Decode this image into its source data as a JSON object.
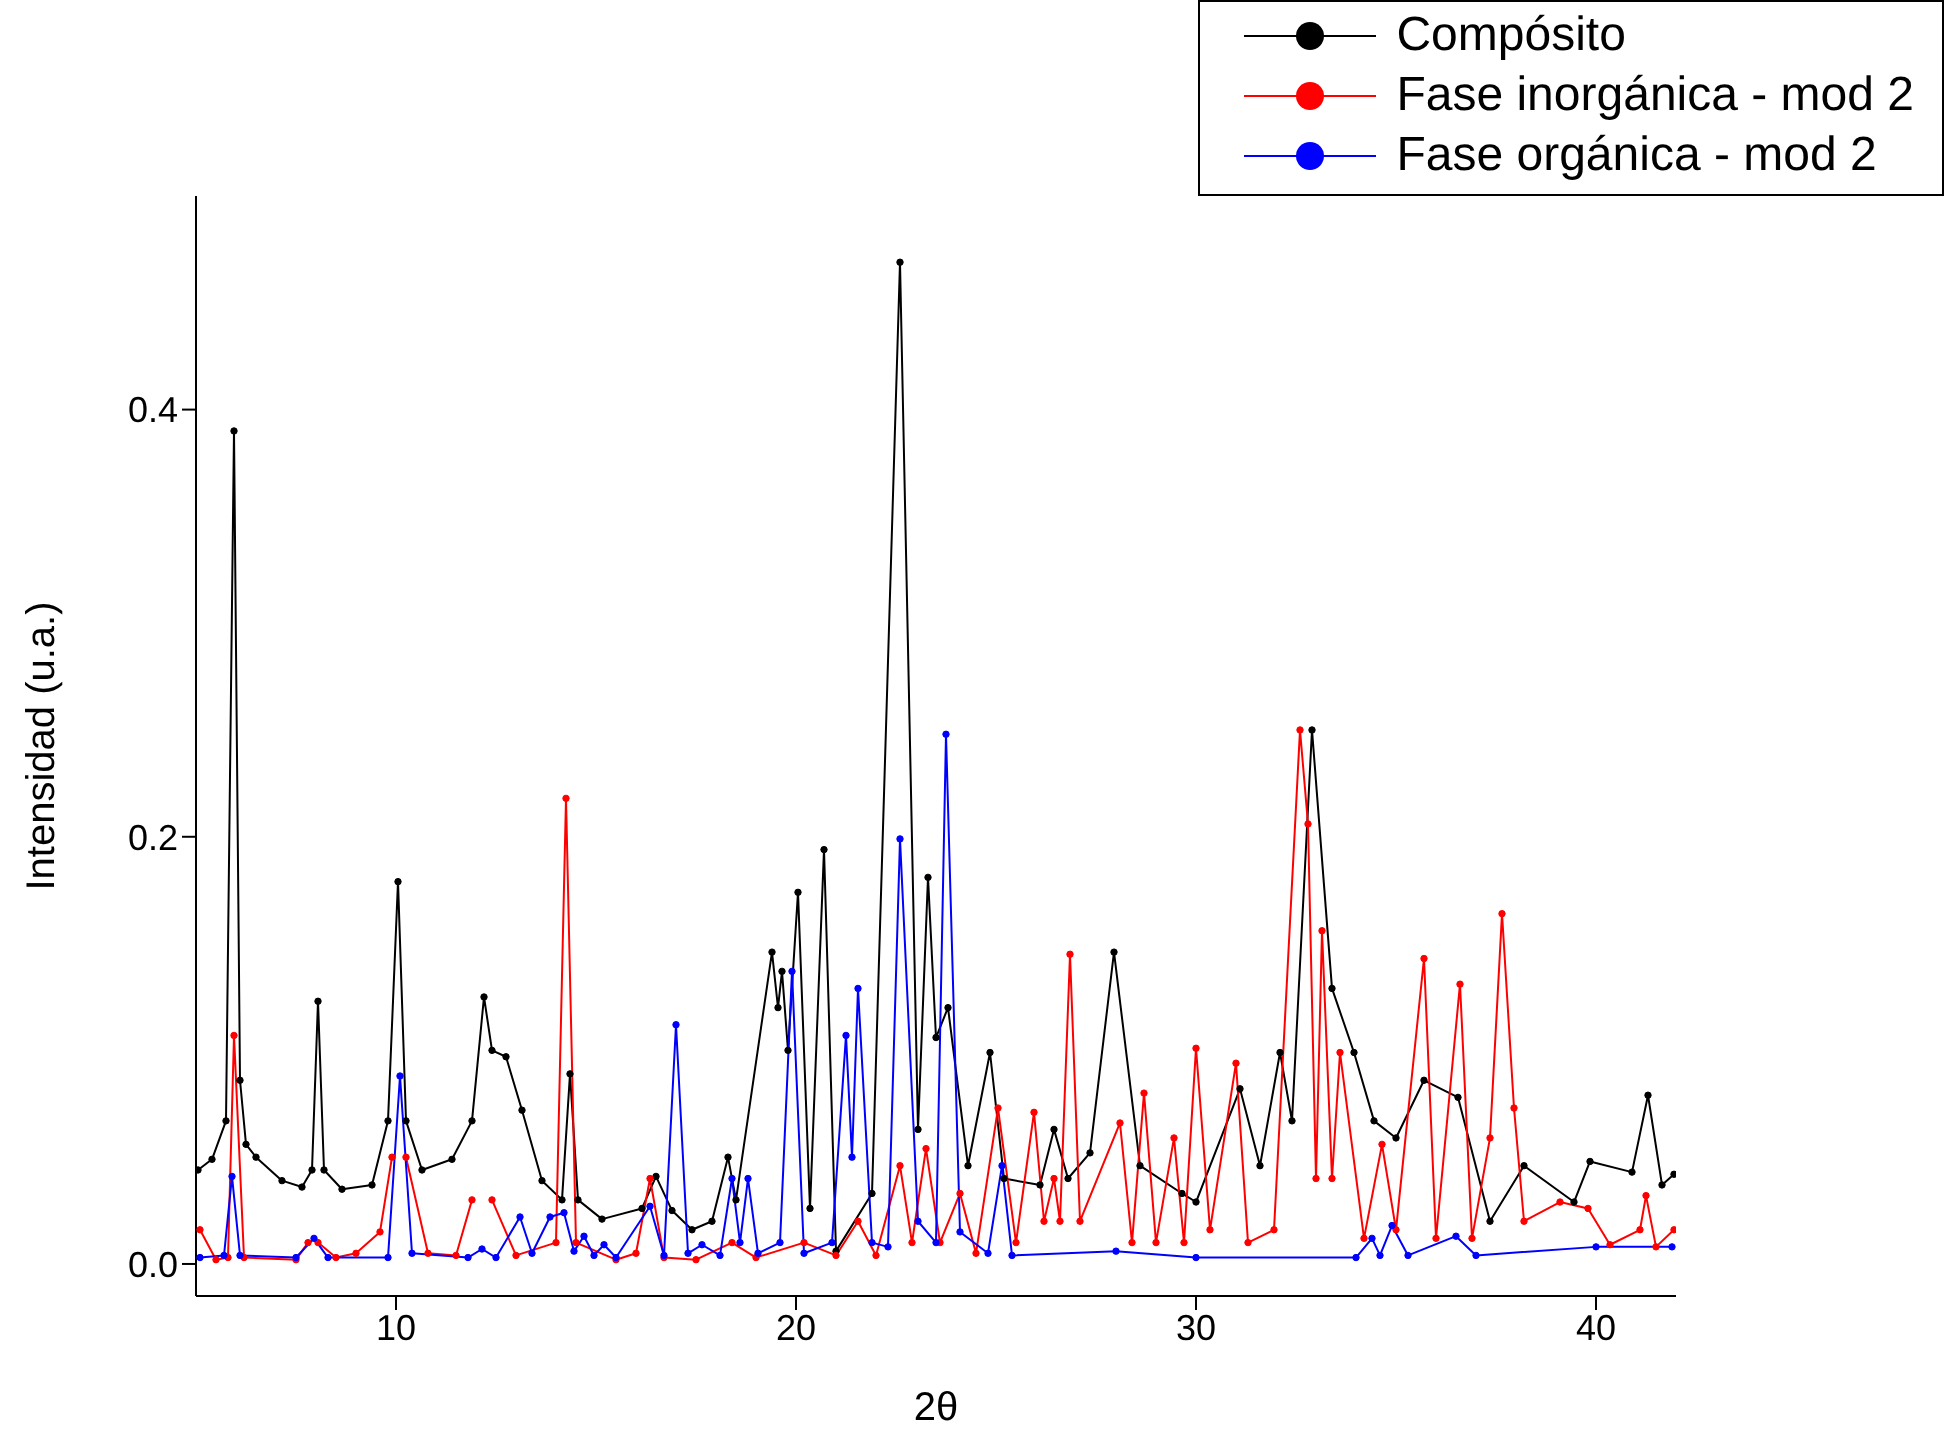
{
  "chart_data": {
    "type": "line",
    "xlabel": "2θ",
    "ylabel": "Intensidad (u.a.)",
    "xlim": [
      5,
      42
    ],
    "ylim": [
      -0.015,
      0.5
    ],
    "xticks": [
      10,
      20,
      30,
      40
    ],
    "yticks": [
      {
        "value": 0,
        "label": "0.0"
      },
      0.2,
      0.4
    ],
    "marker": "circle",
    "legend": "top right",
    "series": [
      {
        "name": "Compósito",
        "color": "#000000",
        "x": [
          5.05,
          5.4,
          5.75,
          5.95,
          6.1,
          6.25,
          6.5,
          7.15,
          7.65,
          7.9,
          8.05,
          8.2,
          8.65,
          9.4,
          9.8,
          10.05,
          10.25,
          10.65,
          11.4,
          11.9,
          12.2,
          12.4,
          12.75,
          13.15,
          13.65,
          14.15,
          14.35,
          14.55,
          15.15,
          16.15,
          16.5,
          16.9,
          17.4,
          17.9,
          18.3,
          18.5,
          19.4,
          19.55,
          19.65,
          19.8,
          20.05,
          20.35,
          20.7,
          21.0,
          21.9,
          22.6,
          23.05,
          23.3,
          23.5,
          23.8,
          24.3,
          24.85,
          25.2,
          26.1,
          26.45,
          26.8,
          27.35,
          27.95,
          28.6,
          29.65,
          30.0,
          31.1,
          31.6,
          32.1,
          32.4,
          32.9,
          33.4,
          33.95,
          34.45,
          35.0,
          35.7,
          36.55,
          37.35,
          38.2,
          39.45,
          39.85,
          40.9,
          41.3,
          41.65,
          41.95
        ],
        "values": [
          0.044,
          0.049,
          0.067,
          0.39,
          0.086,
          0.056,
          0.05,
          0.039,
          0.036,
          0.044,
          0.123,
          0.044,
          0.035,
          0.037,
          0.067,
          0.179,
          0.067,
          0.044,
          0.049,
          0.067,
          0.125,
          0.1,
          0.097,
          0.072,
          0.039,
          0.03,
          0.089,
          0.03,
          0.021,
          0.026,
          0.041,
          0.025,
          0.016,
          0.02,
          0.05,
          0.03,
          0.146,
          0.12,
          0.137,
          0.1,
          0.174,
          0.026,
          0.194,
          0.006,
          0.033,
          0.469,
          0.063,
          0.181,
          0.106,
          0.12,
          0.046,
          0.099,
          0.04,
          0.037,
          0.063,
          0.04,
          0.052,
          0.146,
          0.046,
          0.033,
          0.029,
          0.082,
          0.046,
          0.099,
          0.067,
          0.25,
          0.129,
          0.099,
          0.067,
          0.059,
          0.086,
          0.078,
          0.02,
          0.046,
          0.029,
          0.048,
          0.043,
          0.079,
          0.037,
          0.042
        ]
      },
      {
        "name": "Fase inorgánica - mod 2",
        "color": "#ff0000",
        "x": [
          5.1,
          5.5,
          5.8,
          5.95,
          6.2,
          7.5,
          7.8,
          7.9,
          8.05,
          8.5,
          9.0,
          9.6,
          9.9,
          10.05,
          10.25,
          10.8,
          11.5,
          11.9,
          12.15,
          12.4,
          13.0,
          14.0,
          14.25,
          14.5,
          15.5,
          16.0,
          16.35,
          16.7,
          17.5,
          18.4,
          19.0,
          20.2,
          21.0,
          21.55,
          22.0,
          22.6,
          22.9,
          23.25,
          23.6,
          24.1,
          24.5,
          25.05,
          25.5,
          25.95,
          26.2,
          26.45,
          26.6,
          26.85,
          27.1,
          28.1,
          28.4,
          28.7,
          29.0,
          29.45,
          29.7,
          30.0,
          30.35,
          31.0,
          31.3,
          31.95,
          32.6,
          32.8,
          33.0,
          33.15,
          33.4,
          33.6,
          34.2,
          34.65,
          35.0,
          35.7,
          36.0,
          36.6,
          36.9,
          37.35,
          37.65,
          37.95,
          38.2,
          39.1,
          39.8,
          40.35,
          41.1,
          41.25,
          41.5,
          41.95
        ],
        "values": [
          0.016,
          0.002,
          0.003,
          0.107,
          0.003,
          0.002,
          0.01,
          null,
          0.01,
          0.003,
          0.005,
          0.015,
          0.05,
          null,
          0.05,
          0.005,
          0.004,
          0.03,
          null,
          0.03,
          0.004,
          0.01,
          0.218,
          0.01,
          0.002,
          0.005,
          0.04,
          0.003,
          0.002,
          0.01,
          0.003,
          0.01,
          0.004,
          0.02,
          0.004,
          0.046,
          0.01,
          0.054,
          0.01,
          0.033,
          0.005,
          0.073,
          0.01,
          0.071,
          0.02,
          0.04,
          0.02,
          0.145,
          0.02,
          0.066,
          0.01,
          0.08,
          0.01,
          0.059,
          0.01,
          0.101,
          0.016,
          0.094,
          0.01,
          0.016,
          0.25,
          0.206,
          0.04,
          0.156,
          0.04,
          0.099,
          0.012,
          0.056,
          0.016,
          0.143,
          0.012,
          0.131,
          0.012,
          0.059,
          0.164,
          0.073,
          0.02,
          0.029,
          0.026,
          0.009,
          0.016,
          0.032,
          0.008,
          0.016
        ]
      },
      {
        "name": "Fase orgánica - mod 2",
        "color": "#0000ff",
        "x": [
          5.1,
          5.7,
          5.9,
          6.1,
          7.5,
          7.95,
          8.3,
          9.8,
          10.1,
          10.4,
          11.8,
          12.15,
          12.5,
          13.1,
          13.4,
          13.85,
          14.2,
          14.45,
          14.7,
          14.95,
          15.2,
          15.5,
          16.35,
          16.7,
          17.0,
          17.3,
          17.65,
          18.1,
          18.4,
          18.6,
          18.8,
          19.05,
          19.6,
          19.9,
          20.2,
          20.9,
          21.25,
          21.4,
          21.55,
          21.9,
          22.3,
          22.6,
          23.05,
          23.5,
          23.75,
          24.1,
          24.8,
          25.15,
          25.4,
          28.0,
          30.0,
          34.0,
          34.4,
          34.6,
          34.9,
          35.3,
          36.5,
          37.0,
          40.0,
          41.9
        ],
        "values": [
          0.003,
          0.004,
          0.041,
          0.004,
          0.003,
          0.012,
          0.003,
          0.003,
          0.088,
          0.005,
          0.003,
          0.007,
          0.003,
          0.022,
          0.005,
          0.022,
          0.024,
          0.006,
          0.013,
          0.004,
          0.009,
          0.003,
          0.027,
          0.004,
          0.112,
          0.005,
          0.009,
          0.004,
          0.04,
          0.01,
          0.04,
          0.005,
          0.01,
          0.137,
          0.005,
          0.01,
          0.107,
          0.05,
          0.129,
          0.01,
          0.008,
          0.199,
          0.02,
          0.01,
          0.248,
          0.015,
          0.005,
          0.046,
          0.004,
          0.006,
          0.003,
          0.003,
          0.012,
          0.004,
          0.018,
          0.004,
          0.013,
          0.004,
          0.008,
          0.008
        ]
      }
    ]
  }
}
